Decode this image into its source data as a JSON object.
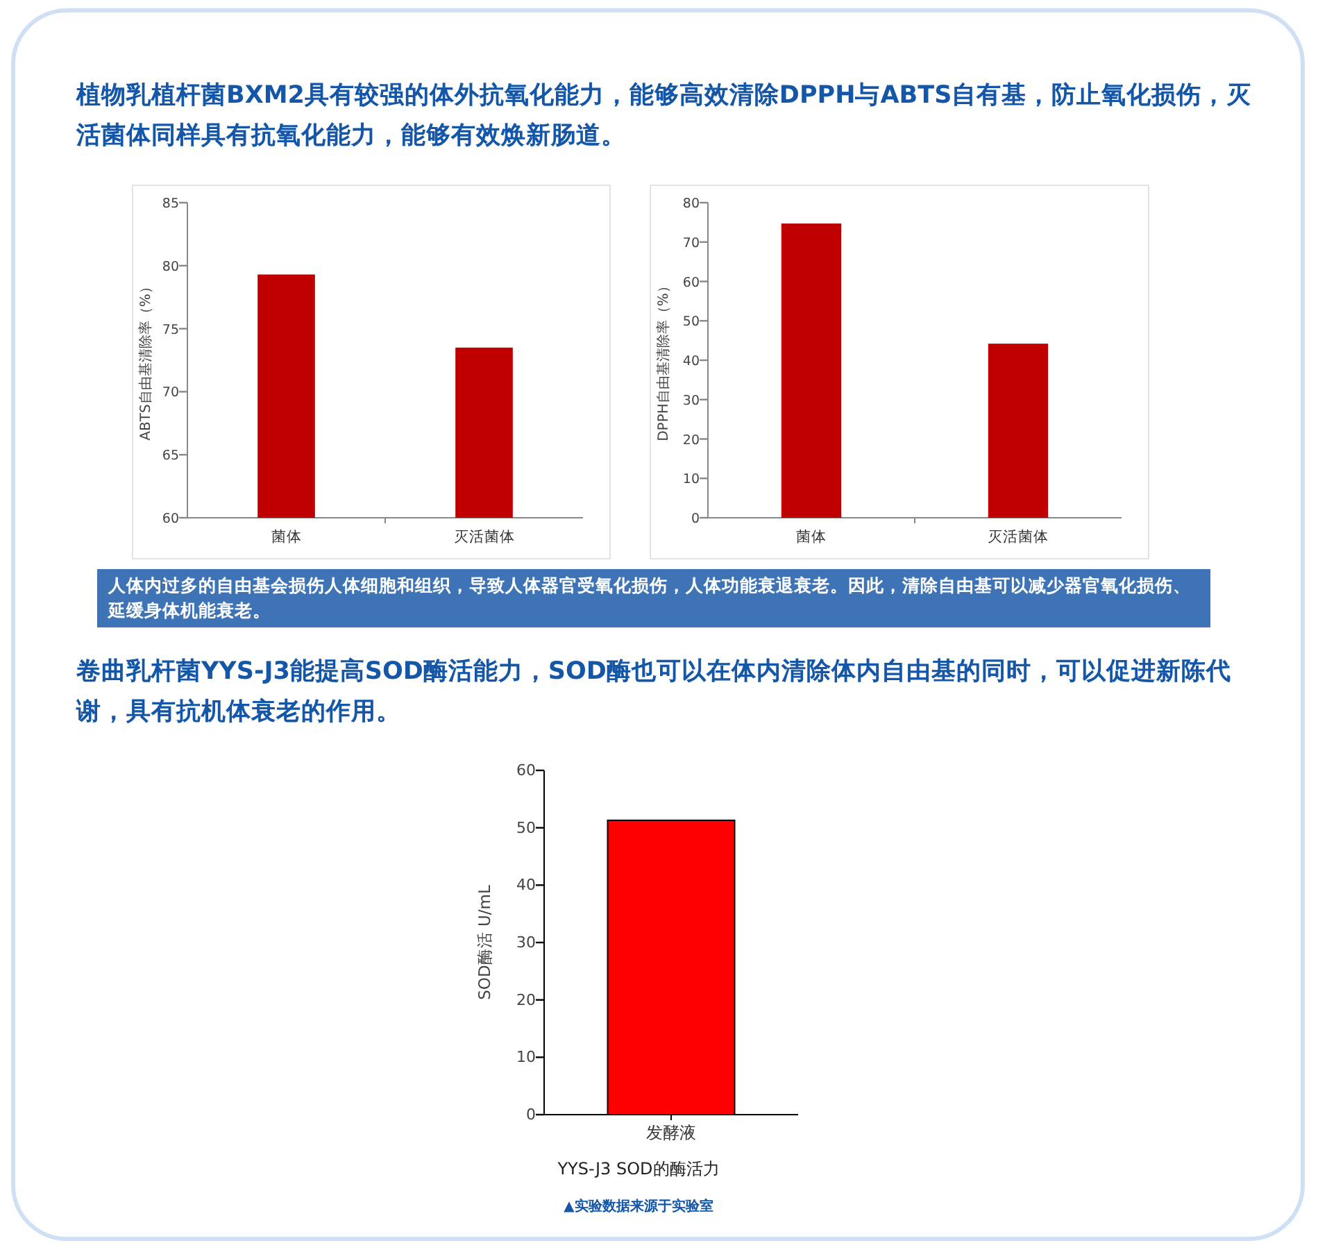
{
  "chart_data": [
    {
      "type": "bar",
      "title": "植物乳植杆菌BXM2具有较强的体外抗氧化能力，能够高效清除DPPH与ABTS自有基，防止氧化损伤，灭活菌体同样具有抗氧化能力，能够有效焕新肠道。",
      "ylabel": "ABTS自由基清除率（%）",
      "categories": [
        "菌体",
        "灭活菌体"
      ],
      "values": [
        79.3,
        73.5
      ],
      "color": "#c00000",
      "ylim": [
        60,
        85
      ],
      "yticks": [
        60,
        65,
        70,
        75,
        80,
        85
      ]
    },
    {
      "type": "bar",
      "ylabel": "DPPH自由基清除率（%）",
      "categories": [
        "菌体",
        "灭活菌体"
      ],
      "values": [
        74.7,
        44.2
      ],
      "color": "#c00000",
      "ylim": [
        0,
        80
      ],
      "yticks": [
        0,
        10,
        20,
        30,
        40,
        50,
        60,
        70,
        80
      ],
      "annotations": [
        "人体内过多的自由基会损伤人体细胞和组织，导致人体器官受氧化损伤，人体功能衰退衰老。因此，清除自由基可以减少器官氧化损伤、延缓身体机能衰老。"
      ]
    },
    {
      "type": "bar",
      "title": "卷曲乳杆菌YYS-J3能提高SOD酶活能力，SOD酶也可以在体内清除体内自由基的同时，可以促进新陈代谢，具有抗机体衰老的作用。",
      "ylabel": "SOD酶活 U/mL",
      "categories": [
        "发酵液"
      ],
      "values": [
        51.3
      ],
      "color": "#ff0000",
      "ylim": [
        0,
        60
      ],
      "yticks": [
        0,
        10,
        20,
        30,
        40,
        50,
        60
      ],
      "annotations": [
        "YYS-J3 SOD的酶活力",
        "▲实验数据来源于实验室"
      ]
    }
  ]
}
